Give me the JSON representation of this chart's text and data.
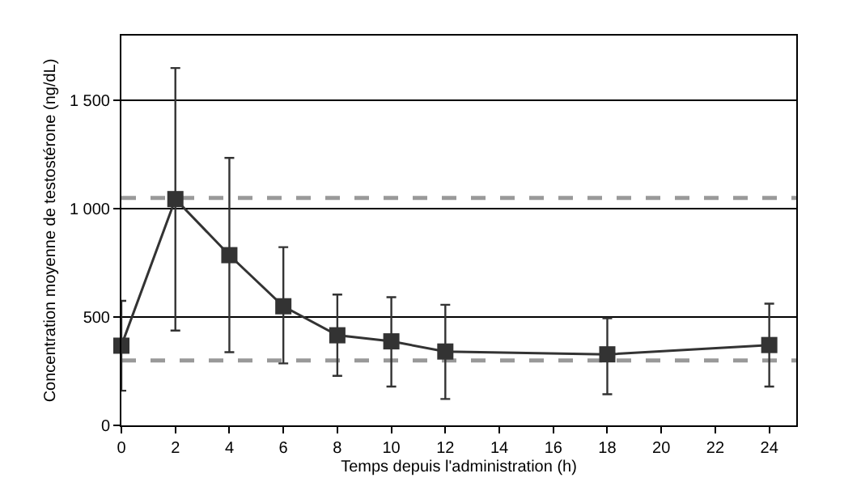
{
  "chart_data": {
    "type": "line",
    "xlabel": "Temps depuis l'administration (h)",
    "ylabel": "Concentration moyenne de testostérone (ng/dL)",
    "x": [
      0,
      2,
      4,
      6,
      8,
      10,
      12,
      18,
      24
    ],
    "series": [
      {
        "color": "#333333",
        "values": [
          368,
          1045,
          786,
          550,
          416,
          388,
          341,
          328,
          371
        ],
        "errors": [
          [
            160,
            575
          ],
          [
            438,
            1650
          ],
          [
            338,
            1235
          ],
          [
            286,
            823
          ],
          [
            229,
            604
          ],
          [
            179,
            592
          ],
          [
            122,
            557
          ],
          [
            144,
            495
          ],
          [
            179,
            562
          ]
        ]
      }
    ],
    "xlim": [
      0,
      25
    ],
    "xticks": [
      0,
      2,
      4,
      6,
      8,
      10,
      12,
      14,
      16,
      18,
      20,
      22,
      24
    ],
    "ylim": [
      0,
      1800
    ],
    "yticks": [
      0,
      500,
      {
        "value": 1000,
        "label": "1 000"
      },
      {
        "value": 1500,
        "label": "1 500"
      }
    ],
    "ref_lines": [
      {
        "axis": "y",
        "value": 1050,
        "color": "#999999",
        "line_style": "dashed"
      },
      {
        "axis": "y",
        "value": 300,
        "color": "#999999",
        "line_style": "dashed"
      }
    ],
    "grid": "y",
    "marker": "square",
    "line_style": "solid"
  }
}
